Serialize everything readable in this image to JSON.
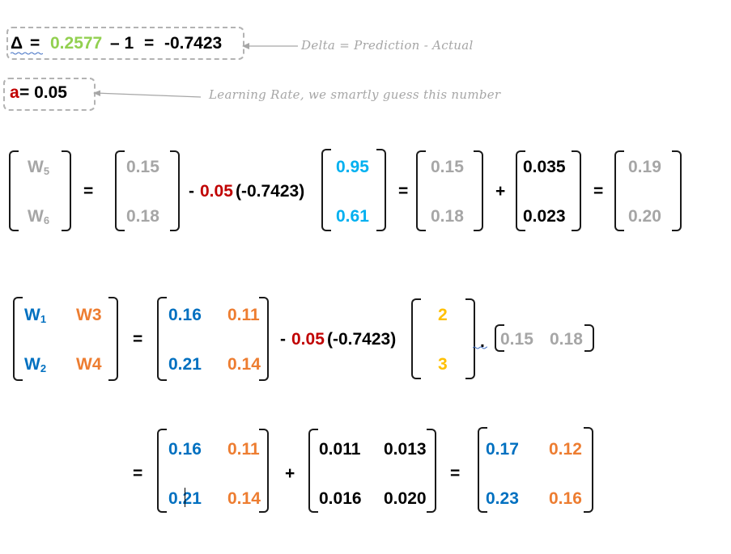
{
  "colors": {
    "gray": "#a6a6a6",
    "red": "#c00000",
    "green": "#92d050",
    "cyan": "#00b0f0",
    "blue": "#0070c0",
    "orange": "#ed7d31",
    "yellow": "#ffc000"
  },
  "delta_eq": {
    "symbol": "Δ",
    "eq1": "=",
    "prediction": "0.2577",
    "minus_actual": "– 1",
    "eq2": "=",
    "result": "-0.7423",
    "note": "Delta = Prediction - Actual"
  },
  "lr_eq": {
    "symbol": "a",
    "rest": " = 0.05",
    "note": "Learning Rate, we smartly guess this number"
  },
  "row1": {
    "lhs": [
      "W",
      "5",
      "W",
      "6"
    ],
    "eq1": "=",
    "m1": [
      "0.15",
      "0.18"
    ],
    "minus": "- ",
    "lr": "0.05",
    "delta": " (-0.7423)",
    "m2": [
      "0.95",
      "0.61"
    ],
    "eq2": "=",
    "m3": [
      "0.15",
      "0.18"
    ],
    "plus": "+",
    "m4": [
      "0.035",
      "0.023"
    ],
    "eq3": "=",
    "m5": [
      "0.19",
      "0.20"
    ]
  },
  "row2": {
    "lhs": [
      "W",
      "1",
      "W3",
      "W",
      "2",
      "W4"
    ],
    "eq1": "=",
    "m1": [
      "0.16",
      "0.11",
      "0.21",
      "0.14"
    ],
    "minus": "- ",
    "lr": "0.05",
    "delta": " (-0.7423)",
    "m2": [
      "2",
      "3"
    ],
    "dot": ".",
    "m3": [
      "0.15",
      "0.18"
    ]
  },
  "row3": {
    "eq1": "=",
    "m1": [
      "0.16",
      "0.11",
      "0.21",
      "0.14"
    ],
    "plus": "+",
    "m2": [
      "0.011",
      "0.013",
      "0.016",
      "0.020"
    ],
    "eq2": "=",
    "m3": [
      "0.17",
      "0.12",
      "0.23",
      "0.16"
    ]
  }
}
